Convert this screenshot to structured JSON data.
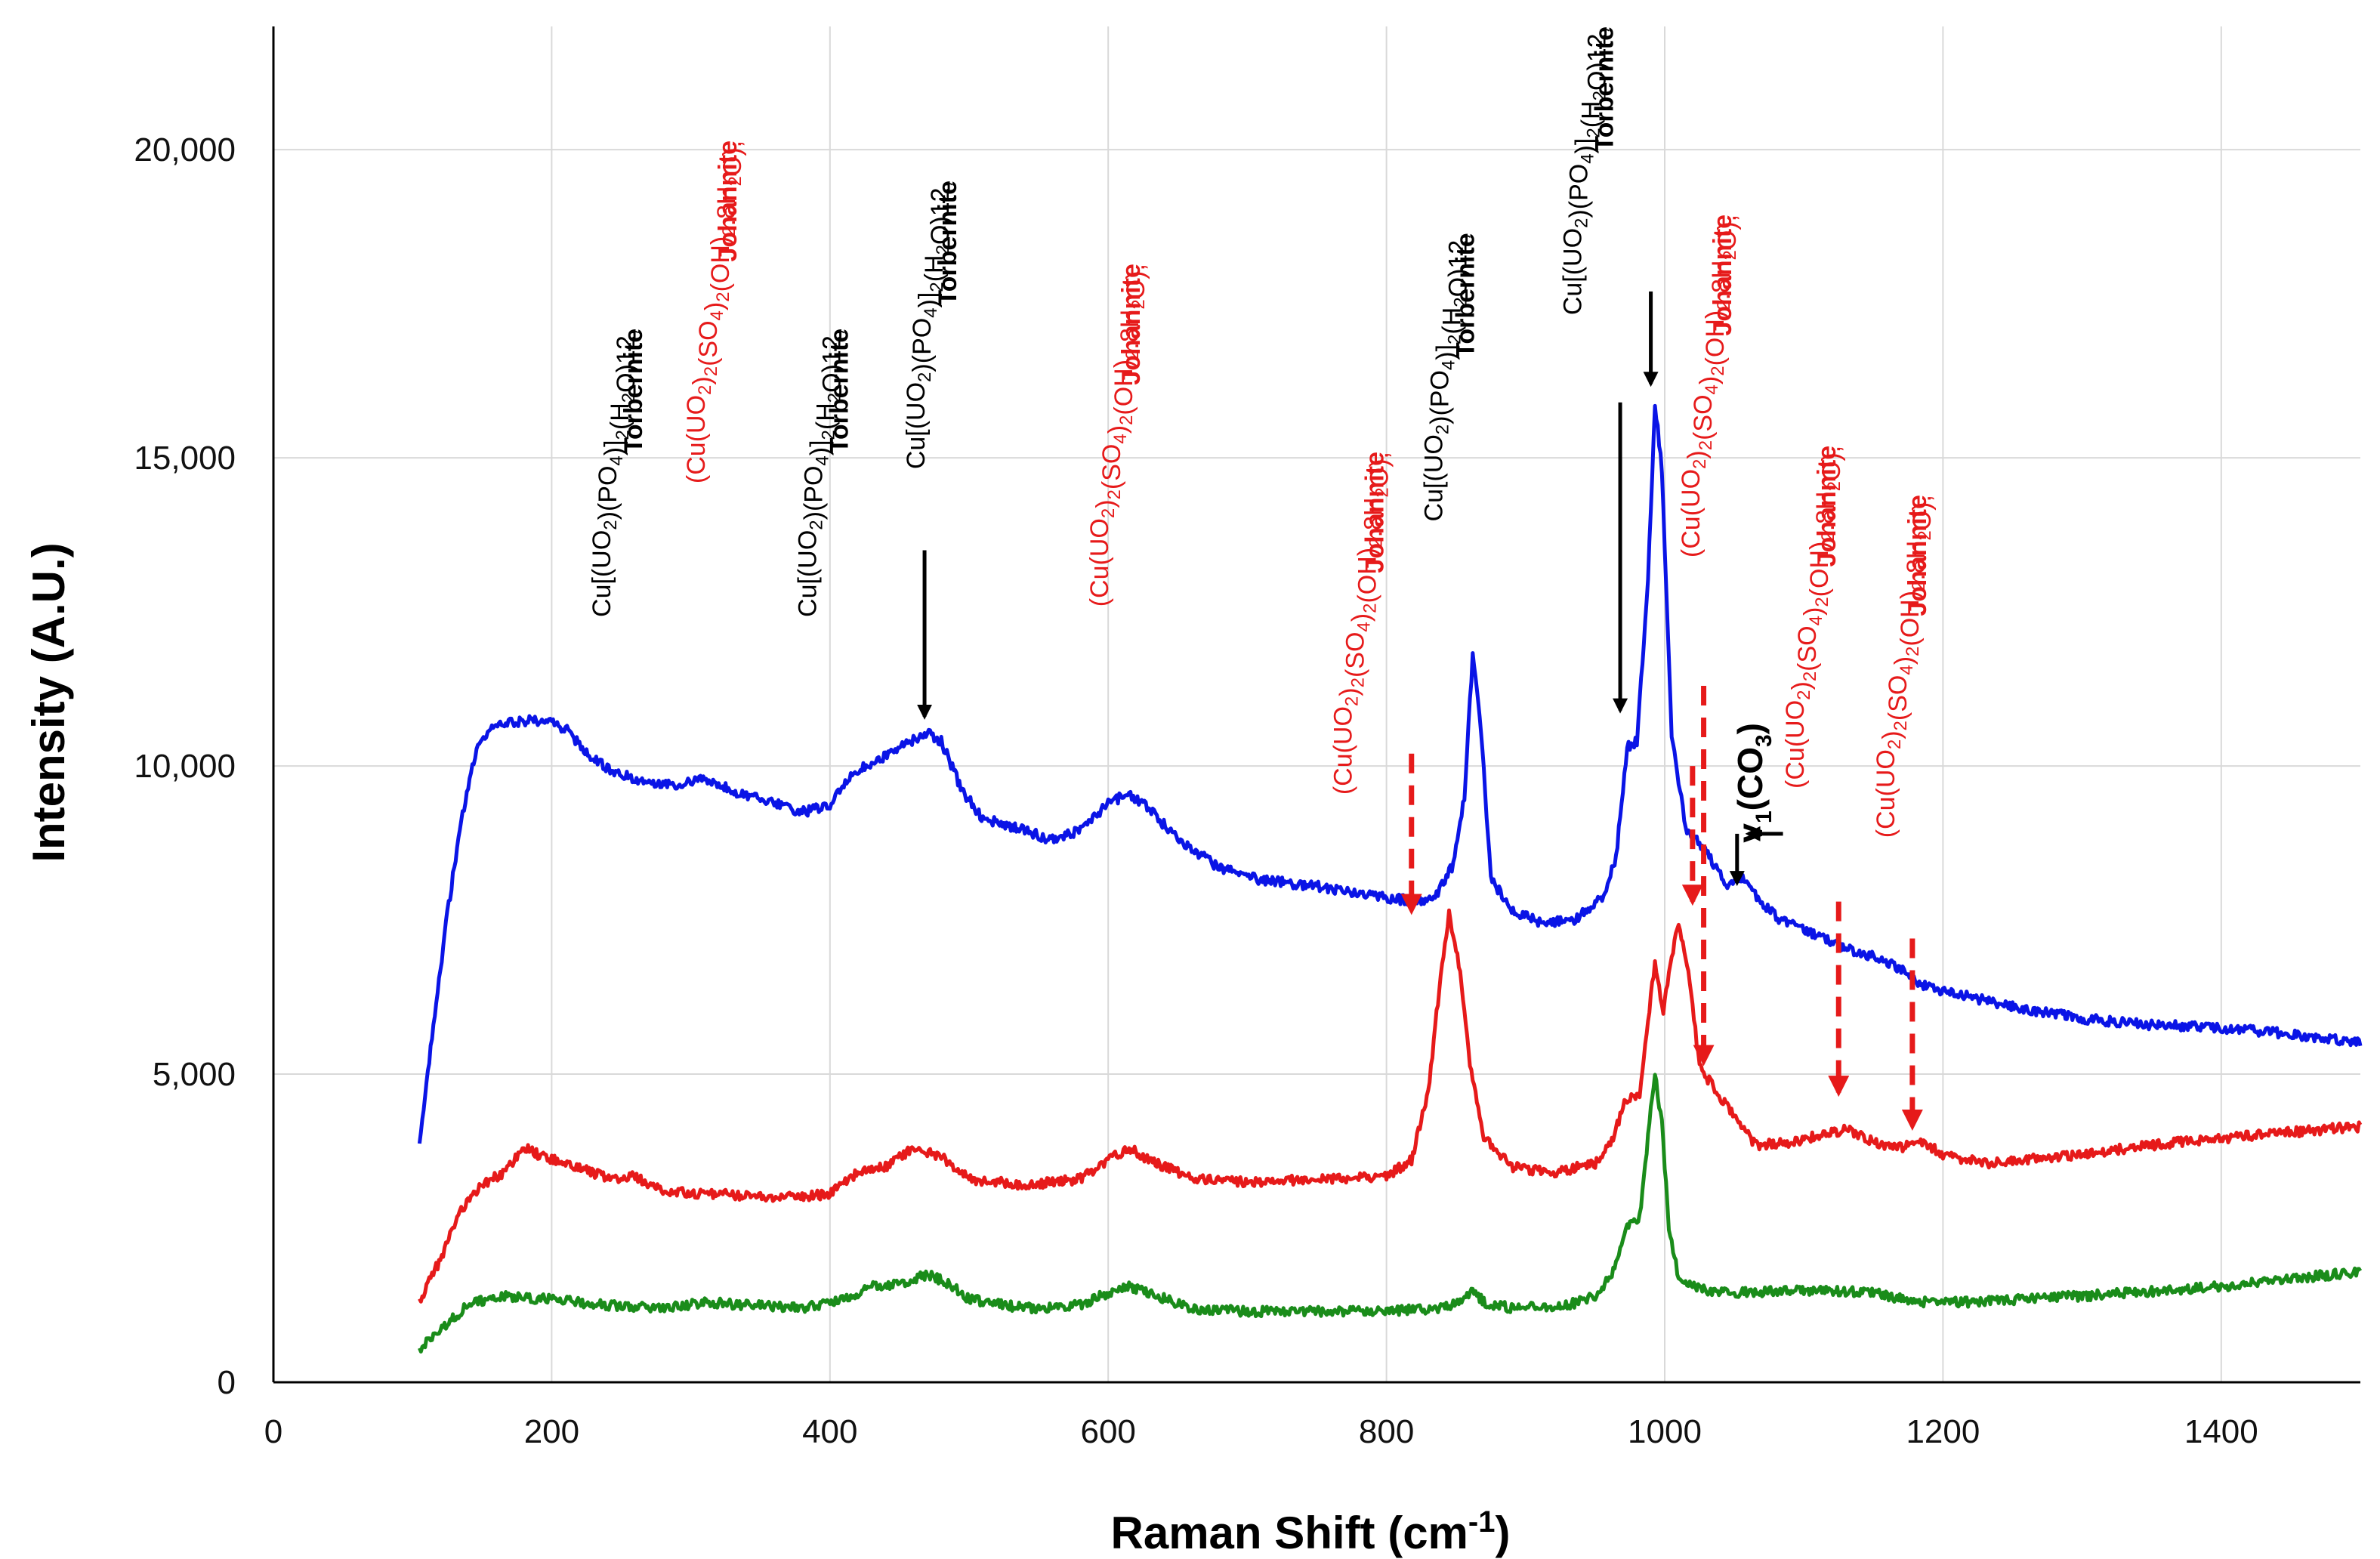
{
  "chart_data": {
    "type": "line",
    "xlabel_main": "Raman Shift (cm",
    "xlabel_sup": "-1",
    "xlabel_end": ")",
    "ylabel": "Intensity (A.U.)",
    "xlim": [
      0,
      1500
    ],
    "ylim": [
      0,
      22000
    ],
    "x_ticks": [
      0,
      200,
      400,
      600,
      800,
      1000,
      1200,
      1400
    ],
    "y_ticks": [
      0,
      5000,
      10000,
      15000,
      20000
    ],
    "y_tick_labels": [
      "0",
      "5,000",
      "10,000",
      "15,000",
      "20,000"
    ],
    "grid": true,
    "colors": {
      "blue": "#0a14e6",
      "red": "#e61a1a",
      "green": "#1a8c1a",
      "black": "#000000",
      "grid": "#d9d9d9"
    },
    "series": [
      {
        "name": "blue",
        "color": "#0a14e6",
        "points": [
          [
            105,
            3800
          ],
          [
            115,
            5800
          ],
          [
            125,
            7600
          ],
          [
            135,
            9100
          ],
          [
            145,
            10200
          ],
          [
            155,
            10600
          ],
          [
            170,
            10700
          ],
          [
            185,
            10750
          ],
          [
            200,
            10700
          ],
          [
            210,
            10600
          ],
          [
            230,
            10100
          ],
          [
            250,
            9850
          ],
          [
            270,
            9750
          ],
          [
            290,
            9700
          ],
          [
            310,
            9780
          ],
          [
            330,
            9600
          ],
          [
            360,
            9400
          ],
          [
            380,
            9250
          ],
          [
            400,
            9350
          ],
          [
            415,
            9850
          ],
          [
            430,
            10050
          ],
          [
            450,
            10300
          ],
          [
            470,
            10550
          ],
          [
            480,
            10400
          ],
          [
            495,
            9600
          ],
          [
            510,
            9150
          ],
          [
            540,
            8950
          ],
          [
            560,
            8800
          ],
          [
            580,
            8950
          ],
          [
            600,
            9400
          ],
          [
            615,
            9550
          ],
          [
            630,
            9300
          ],
          [
            650,
            8800
          ],
          [
            680,
            8350
          ],
          [
            710,
            8150
          ],
          [
            750,
            8050
          ],
          [
            790,
            7900
          ],
          [
            820,
            7800
          ],
          [
            835,
            7850
          ],
          [
            848,
            8400
          ],
          [
            856,
            9500
          ],
          [
            862,
            11800
          ],
          [
            868,
            10600
          ],
          [
            875,
            8200
          ],
          [
            888,
            7700
          ],
          [
            910,
            7450
          ],
          [
            935,
            7500
          ],
          [
            955,
            7850
          ],
          [
            965,
            8500
          ],
          [
            973,
            10300
          ],
          [
            980,
            10400
          ],
          [
            988,
            13000
          ],
          [
            993,
            15900
          ],
          [
            998,
            14800
          ],
          [
            1005,
            10500
          ],
          [
            1015,
            9000
          ],
          [
            1030,
            8600
          ],
          [
            1045,
            8050
          ],
          [
            1055,
            8200
          ],
          [
            1065,
            7900
          ],
          [
            1080,
            7550
          ],
          [
            1100,
            7350
          ],
          [
            1130,
            7050
          ],
          [
            1150,
            6900
          ],
          [
            1170,
            6700
          ],
          [
            1185,
            6450
          ],
          [
            1200,
            6350
          ],
          [
            1250,
            6100
          ],
          [
            1300,
            5900
          ],
          [
            1350,
            5800
          ],
          [
            1400,
            5750
          ],
          [
            1450,
            5650
          ],
          [
            1500,
            5500
          ]
        ]
      },
      {
        "name": "red",
        "color": "#e61a1a",
        "points": [
          [
            105,
            1300
          ],
          [
            120,
            2000
          ],
          [
            135,
            2800
          ],
          [
            150,
            3200
          ],
          [
            165,
            3400
          ],
          [
            180,
            3800
          ],
          [
            195,
            3650
          ],
          [
            220,
            3500
          ],
          [
            240,
            3300
          ],
          [
            260,
            3350
          ],
          [
            280,
            3100
          ],
          [
            320,
            3050
          ],
          [
            360,
            3000
          ],
          [
            400,
            3050
          ],
          [
            420,
            3400
          ],
          [
            440,
            3500
          ],
          [
            460,
            3800
          ],
          [
            480,
            3650
          ],
          [
            500,
            3300
          ],
          [
            540,
            3200
          ],
          [
            580,
            3300
          ],
          [
            600,
            3600
          ],
          [
            615,
            3800
          ],
          [
            630,
            3600
          ],
          [
            660,
            3300
          ],
          [
            700,
            3250
          ],
          [
            760,
            3300
          ],
          [
            800,
            3350
          ],
          [
            818,
            3600
          ],
          [
            830,
            4700
          ],
          [
            838,
            6400
          ],
          [
            845,
            7600
          ],
          [
            852,
            6800
          ],
          [
            860,
            5200
          ],
          [
            870,
            4000
          ],
          [
            890,
            3500
          ],
          [
            920,
            3400
          ],
          [
            950,
            3550
          ],
          [
            962,
            3900
          ],
          [
            972,
            4600
          ],
          [
            982,
            4700
          ],
          [
            988,
            5800
          ],
          [
            993,
            6850
          ],
          [
            999,
            6000
          ],
          [
            1005,
            6900
          ],
          [
            1010,
            7500
          ],
          [
            1018,
            6500
          ],
          [
            1025,
            5100
          ],
          [
            1035,
            4800
          ],
          [
            1050,
            4300
          ],
          [
            1065,
            3850
          ],
          [
            1090,
            3900
          ],
          [
            1110,
            4000
          ],
          [
            1130,
            4100
          ],
          [
            1150,
            3900
          ],
          [
            1170,
            3800
          ],
          [
            1185,
            3900
          ],
          [
            1200,
            3700
          ],
          [
            1230,
            3550
          ],
          [
            1280,
            3650
          ],
          [
            1350,
            3850
          ],
          [
            1420,
            4000
          ],
          [
            1500,
            4150
          ]
        ]
      },
      {
        "name": "green",
        "color": "#1a8c1a",
        "points": [
          [
            105,
            550
          ],
          [
            120,
            850
          ],
          [
            140,
            1250
          ],
          [
            160,
            1400
          ],
          [
            200,
            1350
          ],
          [
            240,
            1250
          ],
          [
            280,
            1200
          ],
          [
            310,
            1300
          ],
          [
            340,
            1250
          ],
          [
            380,
            1200
          ],
          [
            410,
            1350
          ],
          [
            430,
            1550
          ],
          [
            450,
            1600
          ],
          [
            470,
            1750
          ],
          [
            485,
            1600
          ],
          [
            500,
            1350
          ],
          [
            540,
            1200
          ],
          [
            580,
            1250
          ],
          [
            600,
            1450
          ],
          [
            615,
            1550
          ],
          [
            630,
            1450
          ],
          [
            660,
            1200
          ],
          [
            700,
            1150
          ],
          [
            800,
            1150
          ],
          [
            840,
            1200
          ],
          [
            855,
            1300
          ],
          [
            862,
            1500
          ],
          [
            870,
            1300
          ],
          [
            890,
            1200
          ],
          [
            930,
            1250
          ],
          [
            950,
            1400
          ],
          [
            962,
            1750
          ],
          [
            972,
            2500
          ],
          [
            982,
            2700
          ],
          [
            988,
            4000
          ],
          [
            993,
            5000
          ],
          [
            998,
            4200
          ],
          [
            1003,
            2500
          ],
          [
            1010,
            1700
          ],
          [
            1025,
            1500
          ],
          [
            1060,
            1450
          ],
          [
            1100,
            1500
          ],
          [
            1150,
            1450
          ],
          [
            1180,
            1300
          ],
          [
            1220,
            1300
          ],
          [
            1300,
            1400
          ],
          [
            1400,
            1550
          ],
          [
            1500,
            1800
          ]
        ]
      }
    ],
    "annotations": [
      {
        "id": "ann1",
        "color": "#e61a1a",
        "l1": "(Cu(UO₂)₂(SO₄)₂(OH)₂.8H₂O),",
        "l2": "Johannite",
        "x": 310,
        "y": 20150
      },
      {
        "id": "ann2",
        "color": "#000000",
        "l1": "Cu[(UO₂)(PO₄)]₂(H₂O)12,",
        "l2": "Torbernite",
        "x": 242,
        "y": 17100
      },
      {
        "id": "ann3",
        "color": "#000000",
        "l1": "Cu[(UO₂)(PO₄)]₂(H₂O)12,",
        "l2": "Torbernite",
        "x": 390,
        "y": 17100
      },
      {
        "id": "ann4",
        "color": "#000000",
        "l1": "Cu[(UO₂)(PO₄)]₂(H₂O)12,",
        "l2": "Torbernite",
        "x": 468,
        "y": 19500
      },
      {
        "id": "ann5",
        "color": "#e61a1a",
        "l1": "(Cu(UO₂)₂(SO₄)₂(OH)₂.8H₂O),",
        "l2": "Johannite",
        "x": 600,
        "y": 18150
      },
      {
        "id": "ann6",
        "color": "#e61a1a",
        "l1": "(Cu(UO₂)₂(SO₄)₂(OH)₂.8H₂O),",
        "l2": "Johannite",
        "x": 775,
        "y": 15100
      },
      {
        "id": "ann7",
        "color": "#000000",
        "l1": "Cu[(UO₂)(PO₄)]₂(H₂O)12,",
        "l2": "Torbernite",
        "x": 840,
        "y": 18650
      },
      {
        "id": "ann8",
        "color": "#000000",
        "l1": "Cu[(UO₂)(PO₄)]₂(H₂O)12,",
        "l2": "Torbernite",
        "x": 940,
        "y": 22000
      },
      {
        "id": "ann9",
        "color": "#e61a1a",
        "l1": "(Cu(UO₂)₂(SO₄)₂(OH)₂.8H₂O),",
        "l2": "Johannite",
        "x": 1025,
        "y": 18950
      },
      {
        "id": "ann10",
        "color": "#e61a1a",
        "l1": "(Cu(UO₂)₂(SO₄)₂(OH)₂.8H₂O),",
        "l2": "Johannite",
        "x": 1100,
        "y": 15200
      },
      {
        "id": "ann11",
        "color": "#e61a1a",
        "l1": "(Cu(UO₂)₂(SO₄)₂(OH)₂.8H₂O),",
        "l2": "Johannite",
        "x": 1165,
        "y": 14400
      }
    ],
    "carbonate_label": {
      "pre": "v",
      "sub1": "1",
      "mid": "(CO",
      "sub2": "3",
      "post": ")"
    },
    "arrows": [
      {
        "id": "arr1",
        "color": "#000000",
        "dashed": false,
        "x": 468,
        "y1": 13500,
        "y2": 10800
      },
      {
        "id": "arr2",
        "color": "#000000",
        "dashed": false,
        "x": 968,
        "y1": 15900,
        "y2": 10900
      },
      {
        "id": "arr3",
        "color": "#000000",
        "dashed": false,
        "x": 990,
        "y1": 17700,
        "y2": 16200
      },
      {
        "id": "arr4",
        "color": "#000000",
        "dashed": false,
        "x": 1052,
        "y1": 8900,
        "y2": 8100
      },
      {
        "id": "arr5",
        "color": "#e61a1a",
        "dashed": true,
        "x": 818,
        "y1": 10200,
        "y2": 7650
      },
      {
        "id": "arr6",
        "color": "#e61a1a",
        "dashed": true,
        "x": 1020,
        "y1": 10000,
        "y2": 7800
      },
      {
        "id": "arr7",
        "color": "#e61a1a",
        "dashed": true,
        "x": 1028,
        "y1": 11300,
        "y2": 5200
      },
      {
        "id": "arr8",
        "color": "#e61a1a",
        "dashed": true,
        "x": 1125,
        "y1": 7800,
        "y2": 4700
      },
      {
        "id": "arr9",
        "color": "#e61a1a",
        "dashed": true,
        "x": 1178,
        "y1": 7200,
        "y2": 4150
      }
    ]
  }
}
